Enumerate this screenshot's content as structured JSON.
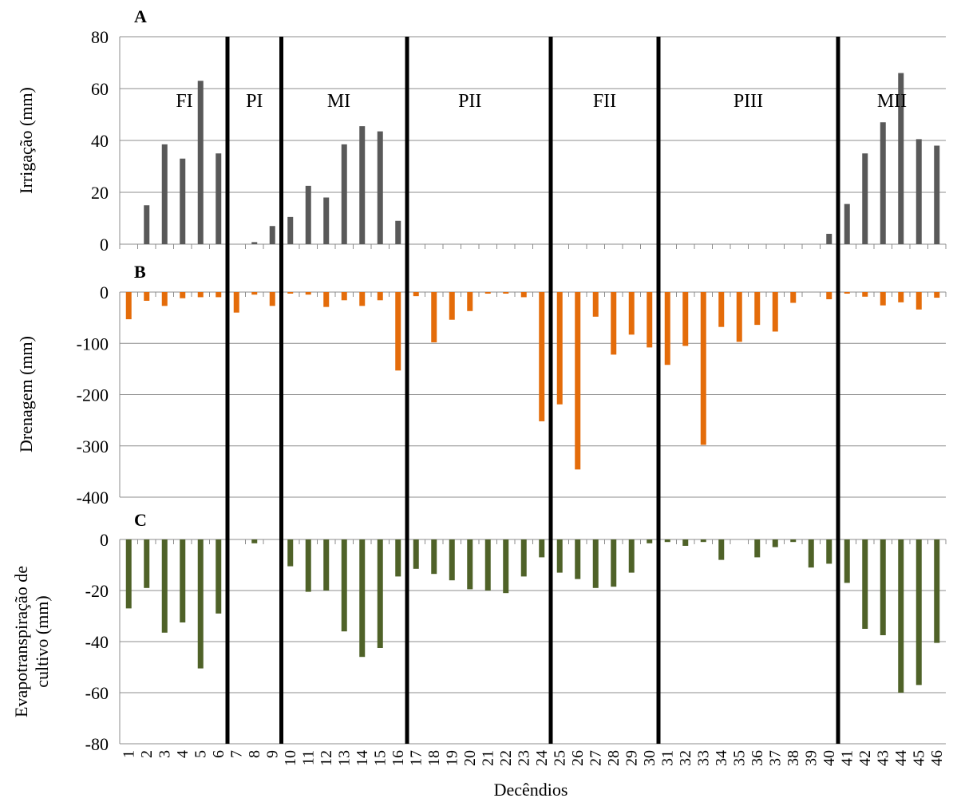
{
  "chart_data": [
    {
      "panel": "A",
      "type": "bar",
      "ylabel": "Irrigação (mm)",
      "ylim": [
        0,
        80
      ],
      "yticks": [
        0,
        20,
        40,
        60,
        80
      ],
      "color": "#595959",
      "x": [
        1,
        2,
        3,
        4,
        5,
        6,
        7,
        8,
        9,
        10,
        11,
        12,
        13,
        14,
        15,
        16,
        17,
        18,
        19,
        20,
        21,
        22,
        23,
        24,
        25,
        26,
        27,
        28,
        29,
        30,
        31,
        32,
        33,
        34,
        35,
        36,
        37,
        38,
        39,
        40,
        41,
        42,
        43,
        44,
        45,
        46
      ],
      "values": [
        0,
        15,
        38.5,
        33,
        63,
        35,
        0,
        0.8,
        7,
        10.5,
        22.5,
        18,
        38.5,
        45.5,
        43.5,
        9,
        0,
        0,
        0,
        0,
        0,
        0,
        0,
        0,
        0,
        0,
        0,
        0,
        0,
        0,
        0,
        0,
        0,
        0,
        0,
        0,
        0,
        0,
        0,
        4,
        15.5,
        35,
        47,
        66,
        40.5,
        38
      ]
    },
    {
      "panel": "B",
      "type": "bar",
      "ylabel": "Drenagem (mm)",
      "ylim": [
        -400,
        0
      ],
      "yticks": [
        -400,
        -300,
        -200,
        -100,
        0
      ],
      "color": "#E46C0A",
      "x": [
        1,
        2,
        3,
        4,
        5,
        6,
        7,
        8,
        9,
        10,
        11,
        12,
        13,
        14,
        15,
        16,
        17,
        18,
        19,
        20,
        21,
        22,
        23,
        24,
        25,
        26,
        27,
        28,
        29,
        30,
        31,
        32,
        33,
        34,
        35,
        36,
        37,
        38,
        39,
        40,
        41,
        42,
        43,
        44,
        45,
        46
      ],
      "values": [
        -53,
        -17,
        -27,
        -12,
        -10,
        -10,
        -40,
        -5,
        -27,
        -3,
        -5,
        -29,
        -16,
        -27,
        -16,
        -153,
        -8,
        -98,
        -54,
        -37,
        -3,
        -3,
        -10,
        -252,
        -219,
        -346,
        -48,
        -122,
        -83,
        -108,
        -142,
        -105,
        -298,
        -68,
        -97,
        -64,
        -77,
        -21,
        0,
        -14,
        -3,
        -9,
        -26,
        -20,
        -34,
        -11
      ]
    },
    {
      "panel": "C",
      "type": "bar",
      "ylabel": "Evapotranspiração de cultivo (mm)",
      "ylabel_lines": [
        "Evapotranspiração de",
        "cultivo (mm)"
      ],
      "ylim": [
        -80,
        0
      ],
      "yticks": [
        -80,
        -60,
        -40,
        -20,
        0
      ],
      "color": "#4F6228",
      "x": [
        1,
        2,
        3,
        4,
        5,
        6,
        7,
        8,
        9,
        10,
        11,
        12,
        13,
        14,
        15,
        16,
        17,
        18,
        19,
        20,
        21,
        22,
        23,
        24,
        25,
        26,
        27,
        28,
        29,
        30,
        31,
        32,
        33,
        34,
        35,
        36,
        37,
        38,
        39,
        40,
        41,
        42,
        43,
        44,
        45,
        46
      ],
      "values": [
        -27,
        -19,
        -36.5,
        -32.5,
        -50.5,
        -29,
        0,
        -1.5,
        0,
        -10.5,
        -20.5,
        -20,
        -36,
        -46,
        -42.5,
        -14.5,
        -11.5,
        -13.5,
        -16,
        -19.5,
        -20,
        -21,
        -14.5,
        -7,
        -13,
        -15.5,
        -19,
        -18.5,
        -13,
        -1.5,
        -1,
        -2.5,
        -1,
        -8,
        0,
        -7,
        -3,
        -1,
        -11,
        -9.5,
        -17,
        -35,
        -37.5,
        -60,
        -57,
        -40.5
      ]
    }
  ],
  "xlabel": "Decêndios",
  "x_tick_labels": [
    "1",
    "2",
    "3",
    "4",
    "5",
    "6",
    "7",
    "8",
    "9",
    "10",
    "11",
    "12",
    "13",
    "14",
    "15",
    "16",
    "17",
    "18",
    "19",
    "20",
    "21",
    "22",
    "23",
    "24",
    "25",
    "26",
    "27",
    "28",
    "29",
    "30",
    "31",
    "32",
    "33",
    "34",
    "35",
    "36",
    "37",
    "38",
    "39",
    "40",
    "41",
    "42",
    "43",
    "44",
    "45",
    "46"
  ],
  "phase_boundaries": [
    6,
    9,
    16,
    24,
    30,
    40
  ],
  "phases": [
    {
      "label": "FI",
      "center": 3.6
    },
    {
      "label": "PI",
      "center": 7.5
    },
    {
      "label": "MI",
      "center": 12.2
    },
    {
      "label": "PII",
      "center": 19.5
    },
    {
      "label": "FII",
      "center": 27
    },
    {
      "label": "PIII",
      "center": 35
    },
    {
      "label": "MII",
      "center": 43
    }
  ]
}
